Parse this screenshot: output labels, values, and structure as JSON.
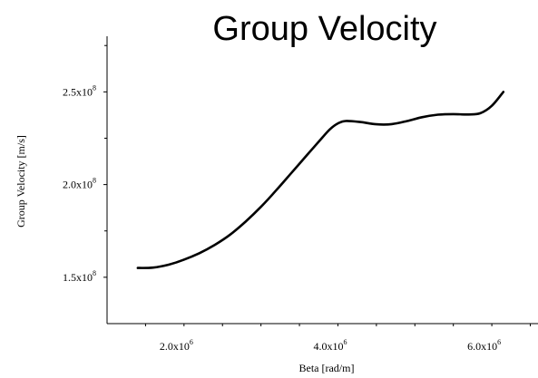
{
  "chart_data": {
    "type": "line",
    "title": "Group Velocity",
    "xlabel": "Beta [rad/m]",
    "ylabel": "Group Velocity [m/s]",
    "xlim": [
      1100000,
      6700000
    ],
    "ylim": [
      125000000,
      280000000
    ],
    "x_ticks": [
      {
        "value": 2000000,
        "base": "2.0x10",
        "exp": "6"
      },
      {
        "value": 4000000,
        "base": "4.0x10",
        "exp": "6"
      },
      {
        "value": 6000000,
        "base": "6.0x10",
        "exp": "6"
      }
    ],
    "y_ticks": [
      {
        "value": 150000000,
        "base": "1.5x10",
        "exp": "8"
      },
      {
        "value": 200000000,
        "base": "2.0x10",
        "exp": "8"
      },
      {
        "value": 250000000,
        "base": "2.5x10",
        "exp": "8"
      }
    ],
    "grid": false,
    "series": [
      {
        "color": "#000000",
        "x": [
          1500000,
          1700000,
          1900000,
          2100000,
          2300000,
          2500000,
          2700000,
          2900000,
          3100000,
          3300000,
          3500000,
          3700000,
          3900000,
          4000000,
          4100000,
          4200000,
          4400000,
          4600000,
          4800000,
          5000000,
          5200000,
          5400000,
          5600000,
          5800000,
          5950000,
          6100000,
          6250000
        ],
        "y": [
          155000000,
          155200000,
          156800000,
          159500000,
          163000000,
          167500000,
          173000000,
          180000000,
          188000000,
          197000000,
          206500000,
          216000000,
          225500000,
          230000000,
          233000000,
          234300000,
          233700000,
          232500000,
          232600000,
          234300000,
          236400000,
          237700000,
          238000000,
          237800000,
          238500000,
          242500000,
          250000000
        ]
      }
    ]
  }
}
